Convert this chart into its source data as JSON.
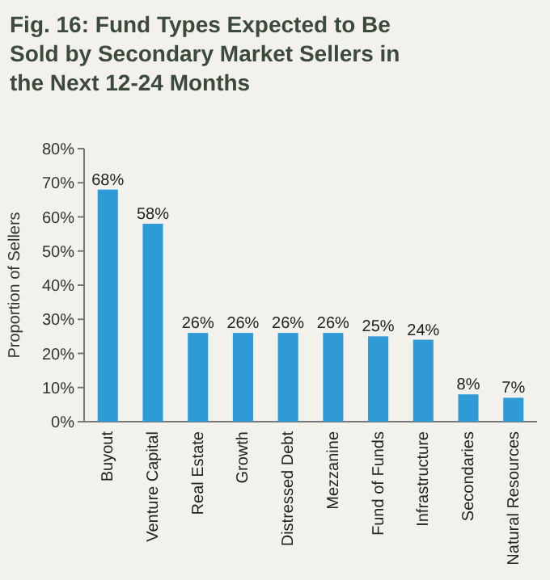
{
  "chart_data": {
    "type": "bar",
    "title": "Fig. 16: Fund Types Expected to Be Sold by Secondary Market Sellers in the Next 12-24 Months",
    "ylabel": "Proportion of Sellers",
    "categories": [
      "Buyout",
      "Venture Capital",
      "Real Estate",
      "Growth",
      "Distressed Debt",
      "Mezzanine",
      "Fund of Funds",
      "Infrastructure",
      "Secondaries",
      "Natural Resources"
    ],
    "values": [
      68,
      58,
      26,
      26,
      26,
      26,
      25,
      24,
      8,
      7
    ],
    "value_labels": [
      "68%",
      "58%",
      "26%",
      "26%",
      "26%",
      "26%",
      "25%",
      "24%",
      "8%",
      "7%"
    ],
    "color": "#2e9ad6",
    "ylim": [
      0,
      80
    ],
    "yticks": [
      {
        "value": 0,
        "label": "0%"
      },
      {
        "value": 10,
        "label": "10%"
      },
      {
        "value": 20,
        "label": "20%"
      },
      {
        "value": 30,
        "label": "30%"
      },
      {
        "value": 40,
        "label": "40%"
      },
      {
        "value": 50,
        "label": "50%"
      },
      {
        "value": 60,
        "label": "60%"
      },
      {
        "value": 70,
        "label": "70%"
      },
      {
        "value": 80,
        "label": "80%"
      }
    ]
  }
}
